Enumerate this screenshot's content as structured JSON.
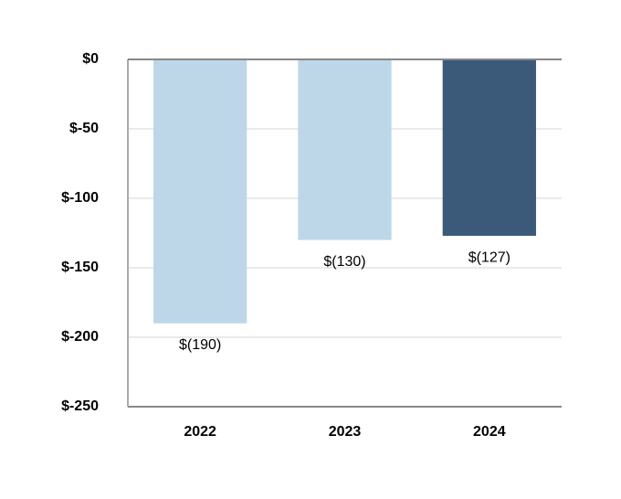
{
  "chart_data": {
    "type": "bar",
    "categories": [
      "2022",
      "2023",
      "2024"
    ],
    "values": [
      -190,
      -130,
      -127
    ],
    "value_labels": [
      "$(190)",
      "$(130)",
      "$(127)"
    ],
    "colors": [
      "#bdd7e9",
      "#bdd7e9",
      "#3b5a79"
    ],
    "ylim": [
      -250,
      0
    ],
    "yticks": [
      {
        "value": 0,
        "label": "$0"
      },
      {
        "value": -50,
        "label": "$-50"
      },
      {
        "value": -100,
        "label": "$-100"
      },
      {
        "value": -150,
        "label": "$-150"
      },
      {
        "value": -200,
        "label": "$-200"
      },
      {
        "value": -250,
        "label": "$-250"
      }
    ],
    "grid": true
  }
}
